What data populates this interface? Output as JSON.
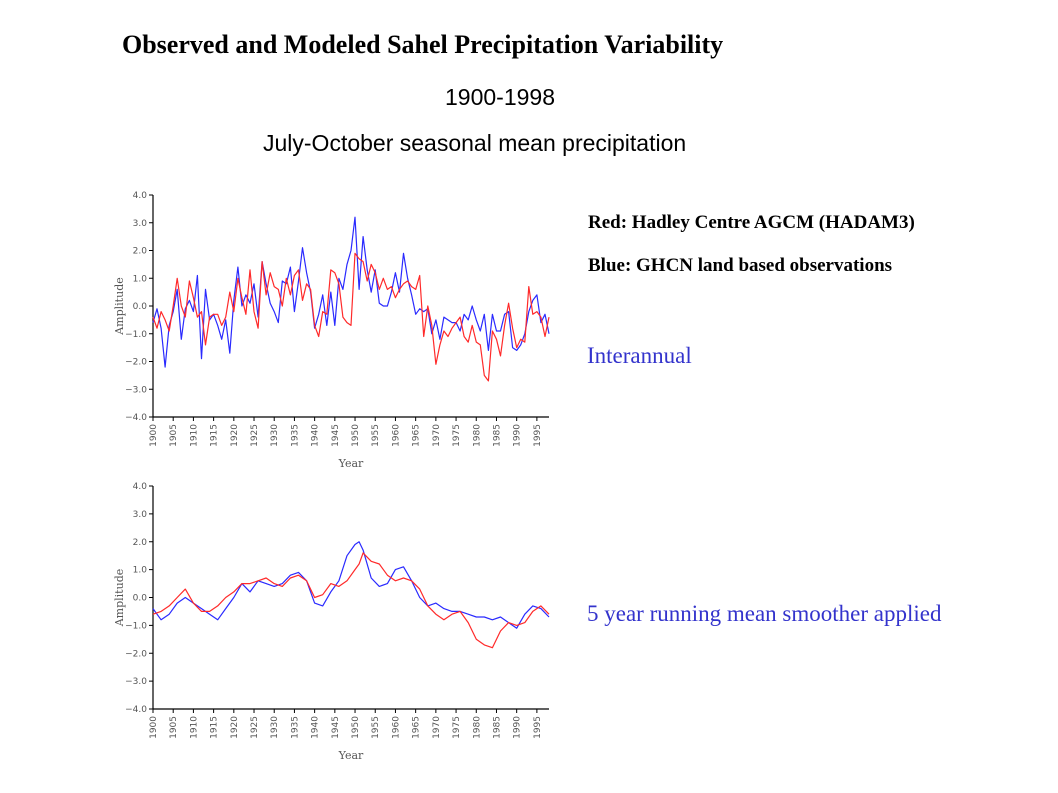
{
  "header": {
    "title": "Observed and Modeled Sahel Precipitation Variability",
    "period": "1900-1998",
    "season": "July-October seasonal mean precipitation"
  },
  "legend": {
    "red": "Red: Hadley Centre AGCM (HADAM3)",
    "blue": "Blue: GHCN land based observations",
    "red_color": "#ff2a2a",
    "blue_color": "#2a2aff"
  },
  "notes": {
    "interannual": "Interannual",
    "smoothed": "5 year running mean smoother applied"
  },
  "chart_data": [
    {
      "type": "line",
      "label": "Interannual",
      "xlabel": "Year",
      "ylabel": "Amplitude",
      "xlim": [
        1900,
        1998
      ],
      "ylim": [
        -4,
        4
      ],
      "yticks": [
        4.0,
        3.0,
        2.0,
        1.0,
        0.0,
        -1.0,
        -2.0,
        -3.0,
        -4.0
      ],
      "ytick_labels": [
        "4.0",
        "3.0",
        "2.0",
        "1.0",
        "0.0",
        "−1.0",
        "−2.0",
        "−3.0",
        "−4.0"
      ],
      "xticks": [
        1900,
        1905,
        1910,
        1915,
        1920,
        1925,
        1930,
        1935,
        1940,
        1945,
        1950,
        1955,
        1960,
        1965,
        1970,
        1975,
        1980,
        1985,
        1990,
        1995
      ],
      "xtick_labels": [
        "1900",
        "1905",
        "1910",
        "1915",
        "1920",
        "1925",
        "1930",
        "1935",
        "1940",
        "1945",
        "1950",
        "1955",
        "1960",
        "1965",
        "1970",
        "1975",
        "1980",
        "1985",
        "1990",
        "1995"
      ],
      "series": [
        {
          "name": "Blue: GHCN land based observations",
          "color": "#2a2aff",
          "x": [
            1900,
            1901,
            1902,
            1903,
            1904,
            1905,
            1906,
            1907,
            1908,
            1909,
            1910,
            1911,
            1912,
            1913,
            1914,
            1915,
            1916,
            1917,
            1918,
            1919,
            1920,
            1921,
            1922,
            1923,
            1924,
            1925,
            1926,
            1927,
            1928,
            1929,
            1930,
            1931,
            1932,
            1933,
            1934,
            1935,
            1936,
            1937,
            1938,
            1939,
            1940,
            1941,
            1942,
            1943,
            1944,
            1945,
            1946,
            1947,
            1948,
            1949,
            1950,
            1951,
            1952,
            1953,
            1954,
            1955,
            1956,
            1957,
            1958,
            1959,
            1960,
            1961,
            1962,
            1963,
            1964,
            1965,
            1966,
            1967,
            1968,
            1969,
            1970,
            1971,
            1972,
            1973,
            1974,
            1975,
            1976,
            1977,
            1978,
            1979,
            1980,
            1981,
            1982,
            1983,
            1984,
            1985,
            1986,
            1987,
            1988,
            1989,
            1990,
            1991,
            1992,
            1993,
            1994,
            1995,
            1996,
            1997,
            1998
          ],
          "values": [
            -0.6,
            -0.1,
            -0.8,
            -2.2,
            -0.7,
            -0.2,
            0.6,
            -1.2,
            -0.1,
            0.2,
            -0.2,
            1.1,
            -1.9,
            0.6,
            -0.5,
            -0.3,
            -0.7,
            -1.2,
            -0.5,
            -1.7,
            0.2,
            1.4,
            0.0,
            0.4,
            0.1,
            0.8,
            -0.4,
            1.6,
            0.8,
            0.1,
            -0.2,
            -0.6,
            0.9,
            0.8,
            1.4,
            -0.2,
            0.9,
            2.1,
            1.2,
            0.5,
            -0.8,
            -0.3,
            0.4,
            -0.7,
            0.5,
            -0.7,
            1.0,
            0.6,
            1.5,
            2.0,
            3.2,
            0.6,
            2.5,
            1.3,
            0.5,
            1.3,
            0.1,
            0.0,
            0.0,
            0.5,
            1.2,
            0.5,
            1.9,
            1.0,
            0.4,
            -0.3,
            -0.1,
            -0.2,
            -0.1,
            -1.0,
            -0.5,
            -1.2,
            -0.4,
            -0.5,
            -0.6,
            -0.6,
            -0.9,
            -0.3,
            -0.5,
            0.0,
            -0.5,
            -0.9,
            -0.3,
            -1.6,
            -0.3,
            -0.9,
            -0.9,
            -0.3,
            -0.2,
            -1.5,
            -1.6,
            -1.4,
            -1.0,
            -0.2,
            0.2,
            0.4,
            -0.6,
            -0.3,
            -1.0
          ]
        },
        {
          "name": "Red: Hadley Centre AGCM (HADAM3)",
          "color": "#ff2a2a",
          "x": [
            1900,
            1901,
            1902,
            1903,
            1904,
            1905,
            1906,
            1907,
            1908,
            1909,
            1910,
            1911,
            1912,
            1913,
            1914,
            1915,
            1916,
            1917,
            1918,
            1919,
            1920,
            1921,
            1922,
            1923,
            1924,
            1925,
            1926,
            1927,
            1928,
            1929,
            1930,
            1931,
            1932,
            1933,
            1934,
            1935,
            1936,
            1937,
            1938,
            1939,
            1940,
            1941,
            1942,
            1943,
            1944,
            1945,
            1946,
            1947,
            1948,
            1949,
            1950,
            1951,
            1952,
            1953,
            1954,
            1955,
            1956,
            1957,
            1958,
            1959,
            1960,
            1961,
            1962,
            1963,
            1964,
            1965,
            1966,
            1967,
            1968,
            1969,
            1970,
            1971,
            1972,
            1973,
            1974,
            1975,
            1976,
            1977,
            1978,
            1979,
            1980,
            1981,
            1982,
            1983,
            1984,
            1985,
            1986,
            1987,
            1988,
            1989,
            1990,
            1991,
            1992,
            1993,
            1994,
            1995,
            1996,
            1997,
            1998
          ],
          "values": [
            -0.4,
            -0.8,
            -0.2,
            -0.5,
            -0.9,
            0.0,
            1.0,
            0.0,
            -0.4,
            0.9,
            0.3,
            -0.4,
            -0.2,
            -1.4,
            -0.4,
            -0.3,
            -0.3,
            -0.7,
            -0.4,
            0.5,
            -0.2,
            1.0,
            0.3,
            -0.3,
            1.3,
            -0.2,
            -0.8,
            1.6,
            0.4,
            1.2,
            0.7,
            0.6,
            0.0,
            1.0,
            0.4,
            1.1,
            1.3,
            0.2,
            0.8,
            0.6,
            -0.7,
            -1.1,
            -0.2,
            -0.3,
            1.3,
            1.2,
            0.8,
            -0.4,
            -0.6,
            -0.7,
            1.9,
            1.7,
            1.6,
            0.9,
            1.5,
            1.2,
            0.6,
            1.0,
            0.6,
            0.7,
            0.3,
            0.6,
            0.8,
            0.9,
            0.7,
            0.6,
            1.1,
            -1.1,
            0.0,
            -0.7,
            -2.1,
            -1.4,
            -0.9,
            -1.1,
            -0.8,
            -0.6,
            -0.4,
            -1.1,
            -1.3,
            -0.7,
            -1.3,
            -1.4,
            -2.5,
            -2.7,
            -0.9,
            -1.2,
            -1.8,
            -0.7,
            0.1,
            -0.8,
            -1.5,
            -1.2,
            -1.3,
            0.7,
            -0.3,
            -0.2,
            -0.4,
            -1.1,
            -0.4
          ]
        }
      ]
    },
    {
      "type": "line",
      "label": "5 year running mean smoother applied",
      "xlabel": "Year",
      "ylabel": "Amplitude",
      "xlim": [
        1900,
        1998
      ],
      "ylim": [
        -4,
        4
      ],
      "yticks": [
        4.0,
        3.0,
        2.0,
        1.0,
        0.0,
        -1.0,
        -2.0,
        -3.0,
        -4.0
      ],
      "ytick_labels": [
        "4.0",
        "3.0",
        "2.0",
        "1.0",
        "0.0",
        "−1.0",
        "−2.0",
        "−3.0",
        "−4.0"
      ],
      "xticks": [
        1900,
        1905,
        1910,
        1915,
        1920,
        1925,
        1930,
        1935,
        1940,
        1945,
        1950,
        1955,
        1960,
        1965,
        1970,
        1975,
        1980,
        1985,
        1990,
        1995
      ],
      "xtick_labels": [
        "1900",
        "1905",
        "1910",
        "1915",
        "1920",
        "1925",
        "1930",
        "1935",
        "1940",
        "1945",
        "1950",
        "1955",
        "1960",
        "1965",
        "1970",
        "1975",
        "1980",
        "1985",
        "1990",
        "1995"
      ],
      "series": [
        {
          "name": "Blue: GHCN land based observations",
          "color": "#2a2aff",
          "x": [
            1900,
            1902,
            1904,
            1906,
            1908,
            1910,
            1912,
            1914,
            1916,
            1918,
            1920,
            1922,
            1924,
            1926,
            1928,
            1930,
            1932,
            1934,
            1936,
            1938,
            1940,
            1942,
            1944,
            1946,
            1948,
            1950,
            1951,
            1952,
            1954,
            1956,
            1958,
            1960,
            1962,
            1964,
            1966,
            1968,
            1970,
            1972,
            1974,
            1976,
            1978,
            1980,
            1982,
            1984,
            1986,
            1988,
            1990,
            1992,
            1994,
            1996,
            1998
          ],
          "values": [
            -0.4,
            -0.8,
            -0.6,
            -0.2,
            0.0,
            -0.2,
            -0.4,
            -0.6,
            -0.8,
            -0.4,
            0.0,
            0.5,
            0.2,
            0.6,
            0.5,
            0.4,
            0.5,
            0.8,
            0.9,
            0.6,
            -0.2,
            -0.3,
            0.2,
            0.6,
            1.5,
            1.9,
            2.0,
            1.7,
            0.7,
            0.4,
            0.5,
            1.0,
            1.1,
            0.6,
            0.0,
            -0.3,
            -0.2,
            -0.4,
            -0.5,
            -0.5,
            -0.6,
            -0.7,
            -0.7,
            -0.8,
            -0.7,
            -0.9,
            -1.1,
            -0.6,
            -0.3,
            -0.4,
            -0.7
          ]
        },
        {
          "name": "Red: Hadley Centre AGCM (HADAM3)",
          "color": "#ff2a2a",
          "x": [
            1900,
            1902,
            1904,
            1906,
            1908,
            1910,
            1912,
            1914,
            1916,
            1918,
            1920,
            1922,
            1924,
            1926,
            1928,
            1930,
            1932,
            1934,
            1936,
            1938,
            1940,
            1942,
            1944,
            1946,
            1948,
            1950,
            1951,
            1952,
            1954,
            1956,
            1958,
            1960,
            1962,
            1964,
            1966,
            1968,
            1970,
            1972,
            1974,
            1976,
            1978,
            1980,
            1982,
            1984,
            1986,
            1988,
            1990,
            1992,
            1994,
            1996,
            1998
          ],
          "values": [
            -0.6,
            -0.5,
            -0.3,
            0.0,
            0.3,
            -0.2,
            -0.5,
            -0.5,
            -0.3,
            0.0,
            0.2,
            0.5,
            0.5,
            0.6,
            0.7,
            0.5,
            0.4,
            0.7,
            0.8,
            0.6,
            0.0,
            0.1,
            0.5,
            0.4,
            0.6,
            1.0,
            1.2,
            1.6,
            1.3,
            1.2,
            0.8,
            0.6,
            0.7,
            0.6,
            0.3,
            -0.3,
            -0.6,
            -0.8,
            -0.6,
            -0.5,
            -0.9,
            -1.5,
            -1.7,
            -1.8,
            -1.2,
            -0.9,
            -1.0,
            -0.9,
            -0.5,
            -0.3,
            -0.6
          ]
        }
      ]
    }
  ]
}
